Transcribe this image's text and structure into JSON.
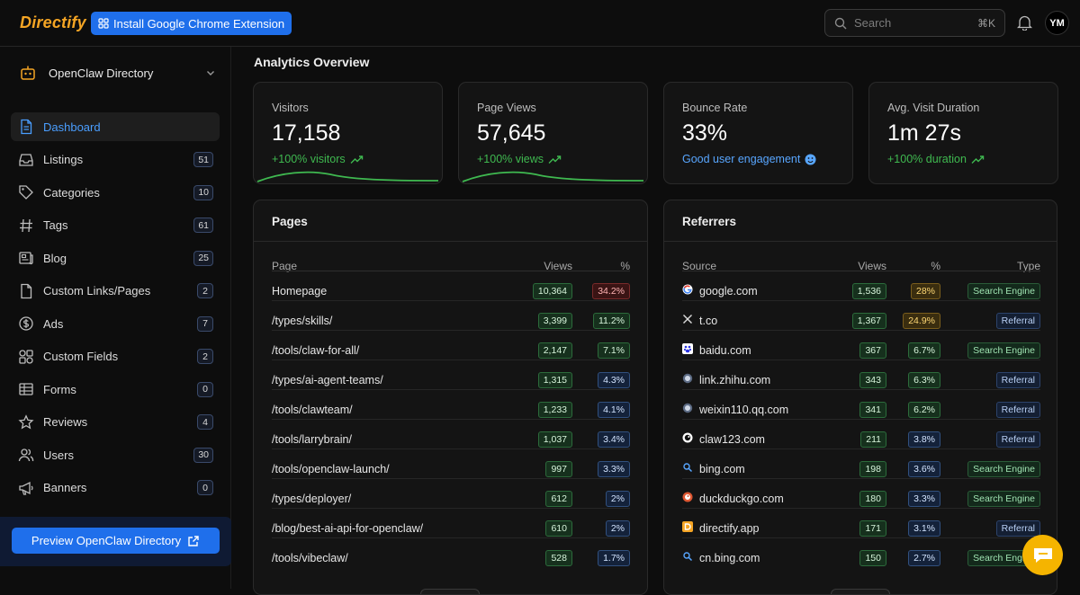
{
  "topbar": {
    "logo": "Directify",
    "extension_button": "Install Google Chrome Extension",
    "search_placeholder": "Search",
    "search_shortcut": "⌘K",
    "avatar_initials": "YM"
  },
  "sidebar": {
    "site_name": "OpenClaw Directory",
    "items": [
      {
        "label": "Dashboard",
        "icon": "document-icon",
        "count": null,
        "active": true
      },
      {
        "label": "Listings",
        "icon": "inbox-icon",
        "count": "51"
      },
      {
        "label": "Categories",
        "icon": "tag-icon",
        "count": "10"
      },
      {
        "label": "Tags",
        "icon": "hash-icon",
        "count": "61"
      },
      {
        "label": "Blog",
        "icon": "newspaper-icon",
        "count": "25"
      },
      {
        "label": "Custom Links/Pages",
        "icon": "page-icon",
        "count": "2"
      },
      {
        "label": "Ads",
        "icon": "dollar-icon",
        "count": "7"
      },
      {
        "label": "Custom Fields",
        "icon": "shapes-icon",
        "count": "2"
      },
      {
        "label": "Forms",
        "icon": "table-icon",
        "count": "0"
      },
      {
        "label": "Reviews",
        "icon": "star-icon",
        "count": "4"
      },
      {
        "label": "Users",
        "icon": "users-icon",
        "count": "30"
      },
      {
        "label": "Banners",
        "icon": "megaphone-icon",
        "count": "0"
      }
    ],
    "preview_button": "Preview OpenClaw Directory"
  },
  "main": {
    "title": "Analytics Overview",
    "stats": [
      {
        "title": "Visitors",
        "value": "17,158",
        "delta": "+100% visitors",
        "tone": "green",
        "spark": true
      },
      {
        "title": "Page Views",
        "value": "57,645",
        "delta": "+100% views",
        "tone": "green",
        "spark": true
      },
      {
        "title": "Bounce Rate",
        "value": "33%",
        "delta": "Good user engagement",
        "tone": "blue",
        "spark": false
      },
      {
        "title": "Avg. Visit Duration",
        "value": "1m 27s",
        "delta": "+100% duration",
        "tone": "green",
        "spark": false
      }
    ],
    "pages": {
      "title": "Pages",
      "headers": {
        "page": "Page",
        "views": "Views",
        "pct": "%"
      },
      "rows": [
        {
          "page": "Homepage",
          "views": "10,364",
          "pct": "34.2%",
          "pct_tone": "red"
        },
        {
          "page": "/types/skills/",
          "views": "3,399",
          "pct": "11.2%",
          "pct_tone": "green"
        },
        {
          "page": "/tools/claw-for-all/",
          "views": "2,147",
          "pct": "7.1%",
          "pct_tone": "green"
        },
        {
          "page": "/types/ai-agent-teams/",
          "views": "1,315",
          "pct": "4.3%",
          "pct_tone": "blue"
        },
        {
          "page": "/tools/clawteam/",
          "views": "1,233",
          "pct": "4.1%",
          "pct_tone": "blue"
        },
        {
          "page": "/tools/larrybrain/",
          "views": "1,037",
          "pct": "3.4%",
          "pct_tone": "blue"
        },
        {
          "page": "/tools/openclaw-launch/",
          "views": "997",
          "pct": "3.3%",
          "pct_tone": "blue"
        },
        {
          "page": "/types/deployer/",
          "views": "612",
          "pct": "2%",
          "pct_tone": "blue"
        },
        {
          "page": "/blog/best-ai-api-for-openclaw/",
          "views": "610",
          "pct": "2%",
          "pct_tone": "blue"
        },
        {
          "page": "/tools/vibeclaw/",
          "views": "528",
          "pct": "1.7%",
          "pct_tone": "blue"
        }
      ]
    },
    "referrers": {
      "title": "Referrers",
      "headers": {
        "source": "Source",
        "views": "Views",
        "pct": "%",
        "type": "Type"
      },
      "rows": [
        {
          "source": "google.com",
          "favicon": "google",
          "views": "1,536",
          "pct": "28%",
          "pct_tone": "yellow",
          "type": "Search Engine"
        },
        {
          "source": "t.co",
          "favicon": "x",
          "views": "1,367",
          "pct": "24.9%",
          "pct_tone": "yellow",
          "type": "Referral"
        },
        {
          "source": "baidu.com",
          "favicon": "baidu",
          "views": "367",
          "pct": "6.7%",
          "pct_tone": "green",
          "type": "Search Engine"
        },
        {
          "source": "link.zhihu.com",
          "favicon": "globe",
          "views": "343",
          "pct": "6.3%",
          "pct_tone": "green",
          "type": "Referral"
        },
        {
          "source": "weixin110.qq.com",
          "favicon": "globe",
          "views": "341",
          "pct": "6.2%",
          "pct_tone": "green",
          "type": "Referral"
        },
        {
          "source": "claw123.com",
          "favicon": "claw",
          "views": "211",
          "pct": "3.8%",
          "pct_tone": "blue",
          "type": "Referral"
        },
        {
          "source": "bing.com",
          "favicon": "search",
          "views": "198",
          "pct": "3.6%",
          "pct_tone": "blue",
          "type": "Search Engine"
        },
        {
          "source": "duckduckgo.com",
          "favicon": "duck",
          "views": "180",
          "pct": "3.3%",
          "pct_tone": "blue",
          "type": "Search Engine"
        },
        {
          "source": "directify.app",
          "favicon": "directify",
          "views": "171",
          "pct": "3.1%",
          "pct_tone": "blue",
          "type": "Referral"
        },
        {
          "source": "cn.bing.com",
          "favicon": "search",
          "views": "150",
          "pct": "2.7%",
          "pct_tone": "blue",
          "type": "Search Engine"
        }
      ]
    }
  }
}
